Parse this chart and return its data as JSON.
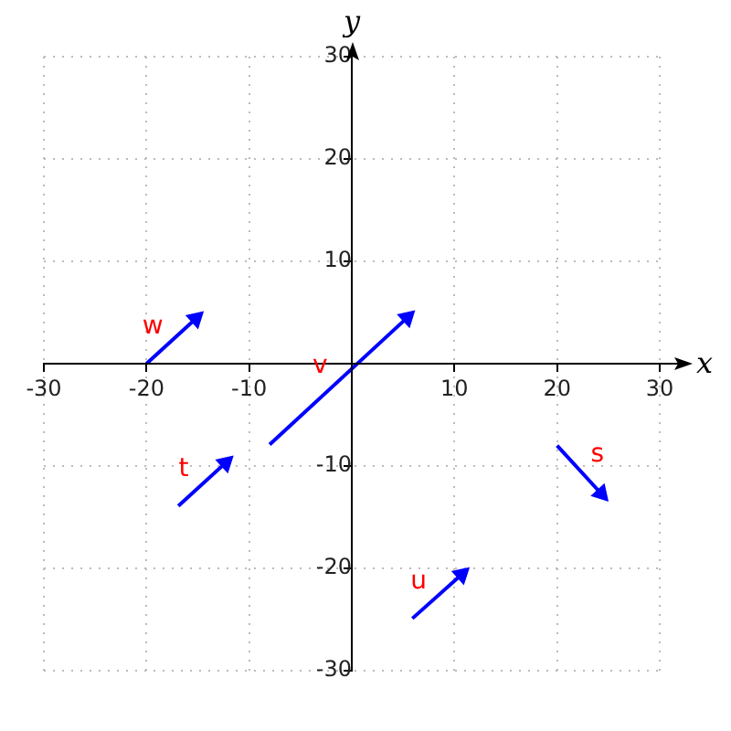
{
  "chart_data": {
    "type": "line",
    "xlabel": "x",
    "ylabel": "y",
    "xlim": [
      -30,
      30
    ],
    "ylim": [
      -30,
      30
    ],
    "xticks": [
      -30,
      -20,
      -10,
      {
        "value": 0,
        "label": null
      },
      10,
      20,
      30
    ],
    "yticks": [
      -30,
      -20,
      -10,
      {
        "value": 0,
        "label": null
      },
      10,
      20,
      30
    ],
    "grid": true,
    "marker": "triangle",
    "line_style": "solid",
    "series": [
      {
        "name": "s",
        "color": "#0000ff",
        "x": [
          20,
          24.3
        ],
        "values": [
          -8,
          -12.7
        ]
      },
      {
        "name": "t",
        "color": "#0000ff",
        "x": [
          -16.9,
          -12.3
        ],
        "values": [
          -13.9,
          -9.7
        ]
      },
      {
        "name": "u",
        "color": "#0000ff",
        "x": [
          5.9,
          10.7
        ],
        "values": [
          -24.9,
          -20.6
        ]
      },
      {
        "name": "v",
        "color": "#0000ff",
        "x": [
          -8,
          5.4
        ],
        "values": [
          -7.9,
          4.5
        ]
      },
      {
        "name": "w",
        "color": "#0000ff",
        "x": [
          -20,
          -15.2
        ],
        "values": [
          0,
          4.4
        ]
      }
    ]
  }
}
